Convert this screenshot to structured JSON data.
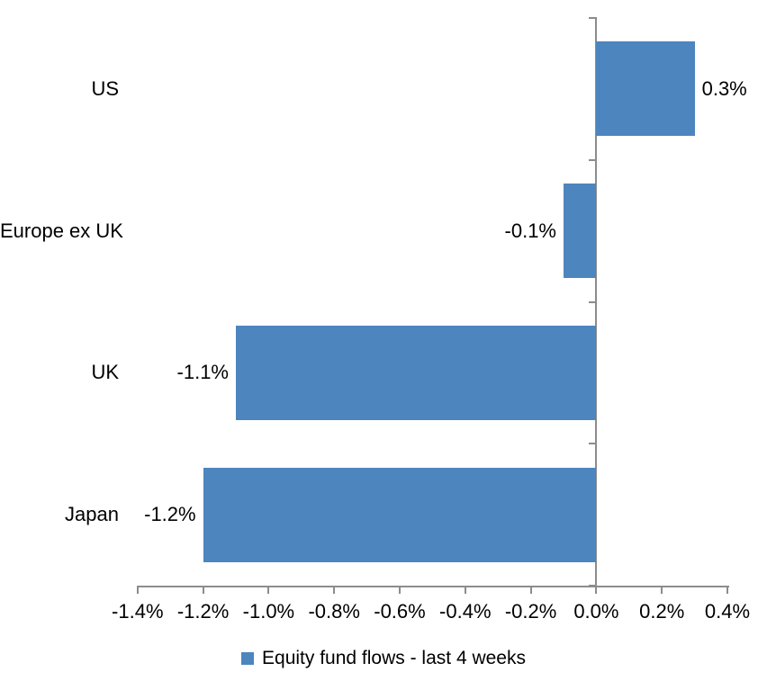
{
  "chart_data": {
    "type": "bar",
    "orientation": "horizontal",
    "categories": [
      "US",
      "Europe ex UK",
      "UK",
      "Japan"
    ],
    "series": [
      {
        "name": "Equity fund flows - last 4 weeks",
        "values": [
          0.3,
          -0.1,
          -1.1,
          -1.2
        ]
      }
    ],
    "value_labels": [
      "0.3%",
      "-0.1%",
      "-1.1%",
      "-1.2%"
    ],
    "x_axis": {
      "min": -1.4,
      "max": 0.4,
      "tick_step": 0.2,
      "tick_labels": [
        "-1.4%",
        "-1.2%",
        "-1.0%",
        "-0.8%",
        "-0.6%",
        "-0.4%",
        "-0.2%",
        "0.0%",
        "0.2%",
        "0.4%"
      ],
      "unit": "%"
    },
    "legend": {
      "label": "Equity fund flows - last 4 weeks",
      "position": "bottom"
    },
    "colors": {
      "bar": "#4D85BE",
      "axis": "#8C8C8C",
      "text": "#000000",
      "background": "#FFFFFF"
    },
    "grid": false,
    "data_labels": "outside-end"
  }
}
